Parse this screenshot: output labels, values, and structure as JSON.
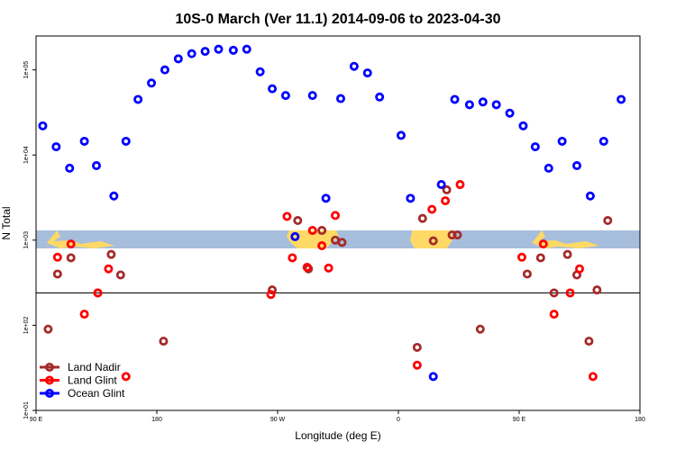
{
  "chart_data": {
    "type": "scatter",
    "title": "10S-0 March (Ver 11.1)   2014-09-06 to 2023-04-30",
    "xlabel": "Longitude (deg E)",
    "ylabel": "N Total",
    "y_scale": "log",
    "xlim": [
      90,
      540
    ],
    "ylim": [
      10,
      250000
    ],
    "x_ticks": [
      {
        "value": 90,
        "label": "90 E"
      },
      {
        "value": 180,
        "label": "180"
      },
      {
        "value": 270,
        "label": "90 W"
      },
      {
        "value": 360,
        "label": "0"
      },
      {
        "value": 450,
        "label": "90 E"
      },
      {
        "value": 540,
        "label": "180"
      }
    ],
    "y_ticks": [
      {
        "value": 10,
        "label": "1e+01"
      },
      {
        "value": 100,
        "label": "1e+02"
      },
      {
        "value": 1000,
        "label": "1e+03"
      },
      {
        "value": 10000,
        "label": "1e+04"
      },
      {
        "value": 100000,
        "label": "1e+05"
      }
    ],
    "reference_line_y": 240,
    "latitude_band": {
      "y_low": 800,
      "y_high": 1300,
      "color": "#a6bddb",
      "land_color": "#ffd966"
    },
    "legend_position": "bottom-left",
    "series": [
      {
        "name": "Land Nadir",
        "color": "#a52a2a",
        "x": [
          99,
          106,
          116,
          136,
          146,
          153,
          185,
          266,
          285,
          293,
          303,
          313,
          318,
          378,
          374,
          386,
          396,
          404,
          400,
          421,
          456,
          466,
          476,
          486,
          493,
          502,
          508,
          516
        ],
        "y": [
          90,
          400,
          620,
          240,
          680,
          390,
          65,
          260,
          1700,
          460,
          1300,
          1000,
          940,
          1800,
          55,
          980,
          3900,
          1150,
          1150,
          90,
          400,
          620,
          240,
          680,
          390,
          65,
          260,
          1700
        ]
      },
      {
        "name": "Land Glint",
        "color": "#ff0000",
        "x": [
          106,
          116,
          126,
          136,
          144,
          157,
          265,
          277,
          281,
          292,
          296,
          303,
          308,
          313,
          374,
          385,
          395,
          406,
          452,
          468,
          476,
          488,
          495,
          505
        ],
        "y": [
          630,
          900,
          135,
          240,
          460,
          25,
          230,
          1900,
          620,
          480,
          1300,
          860,
          470,
          1950,
          34,
          2300,
          2900,
          4500,
          630,
          900,
          135,
          240,
          460,
          25
        ]
      },
      {
        "name": "Ocean Glint",
        "color": "#0000ff",
        "x": [
          95,
          105,
          115,
          126,
          135,
          148,
          157,
          166,
          176,
          186,
          196,
          206,
          216,
          226,
          237,
          247,
          257,
          266,
          276,
          283,
          296,
          306,
          317,
          327,
          337,
          346,
          362,
          369,
          386,
          392,
          402,
          413,
          423,
          433,
          443,
          453,
          462,
          472,
          482,
          493,
          503,
          513,
          526
        ],
        "y": [
          22000,
          12500,
          7000,
          14500,
          7500,
          3300,
          14500,
          45000,
          70000,
          100000,
          135000,
          155000,
          165000,
          175000,
          170000,
          175000,
          95000,
          60000,
          50000,
          1100,
          50000,
          3100,
          46000,
          110000,
          92000,
          48000,
          17000,
          3100,
          25,
          4500,
          45000,
          39000,
          42000,
          39000,
          31000,
          22000,
          12500,
          7000,
          14500,
          7500,
          3300,
          14500,
          45000
        ]
      }
    ]
  }
}
